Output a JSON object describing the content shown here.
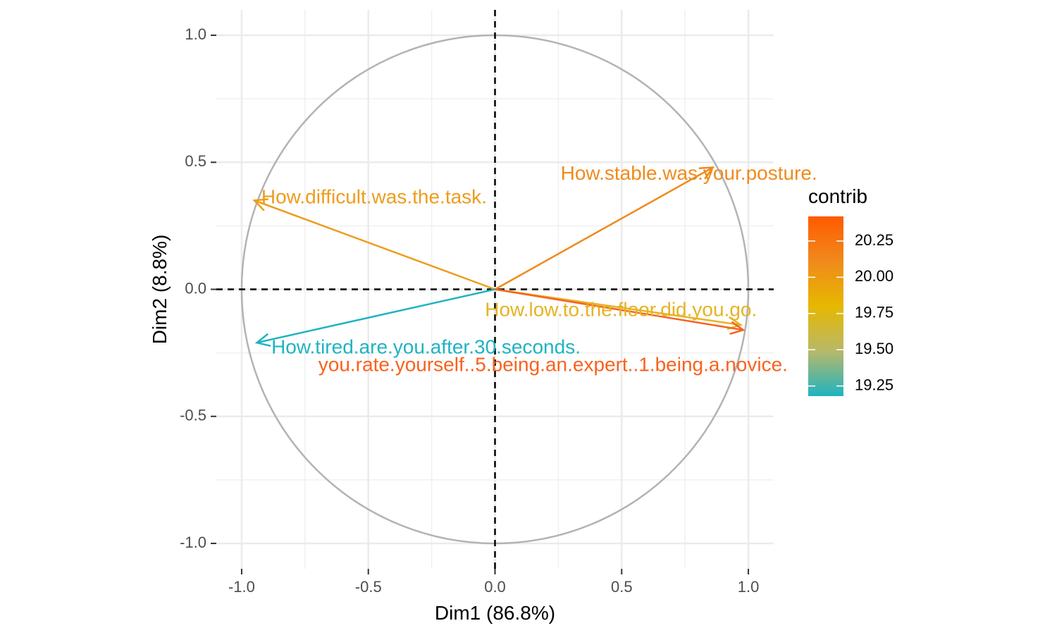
{
  "chart_data": {
    "type": "scatter",
    "subtype": "pca-variable-correlation-circle",
    "xlabel": "Dim1 (86.8%)",
    "ylabel": "Dim2 (8.8%)",
    "xlim": [
      -1.1,
      1.1
    ],
    "ylim": [
      -1.1,
      1.1
    ],
    "x_ticks": [
      -1.0,
      -0.5,
      0.0,
      0.5,
      1.0
    ],
    "y_ticks": [
      -1.0,
      -0.5,
      0.0,
      0.5,
      1.0
    ],
    "x_tick_labels": [
      "-1.0",
      "-0.5",
      "0.0",
      "0.5",
      "1.0"
    ],
    "y_tick_labels": [
      "-1.0",
      "-0.5",
      "0.0",
      "0.5",
      "1.0"
    ],
    "grid": true,
    "unit_circle": true,
    "variables": [
      {
        "label": "How.stable.was.your.posture.",
        "x": 0.86,
        "y": 0.48,
        "contrib": 20.1,
        "color": "#f08a1c"
      },
      {
        "label": "How.difficult.was.the.task.",
        "x": -0.95,
        "y": 0.35,
        "contrib": 19.95,
        "color": "#ee9c1d"
      },
      {
        "label": "How.low.to.the.floor.did.you.go.",
        "x": 0.97,
        "y": -0.14,
        "contrib": 19.8,
        "color": "#e6b323"
      },
      {
        "label": "How.tired.are.you.after.30.seconds.",
        "x": -0.94,
        "y": -0.21,
        "contrib": 19.2,
        "color": "#1fb3c2"
      },
      {
        "label": "you.rate.yourself..5.being.an.expert..1.being.a.novice.",
        "x": 0.98,
        "y": -0.16,
        "contrib": 20.4,
        "color": "#f8621d"
      }
    ],
    "legend": {
      "title": "contrib",
      "position": "right",
      "type": "gradient",
      "min": 19.18,
      "max": 20.42,
      "breaks": [
        20.25,
        20.0,
        19.75,
        19.5,
        19.25
      ],
      "break_labels": [
        "20.25",
        "20.00",
        "19.75",
        "19.50",
        "19.25"
      ],
      "colors": [
        "#ff5a00",
        "#f08a1c",
        "#e6b800",
        "#b8b86a",
        "#1fb3c2"
      ]
    }
  }
}
